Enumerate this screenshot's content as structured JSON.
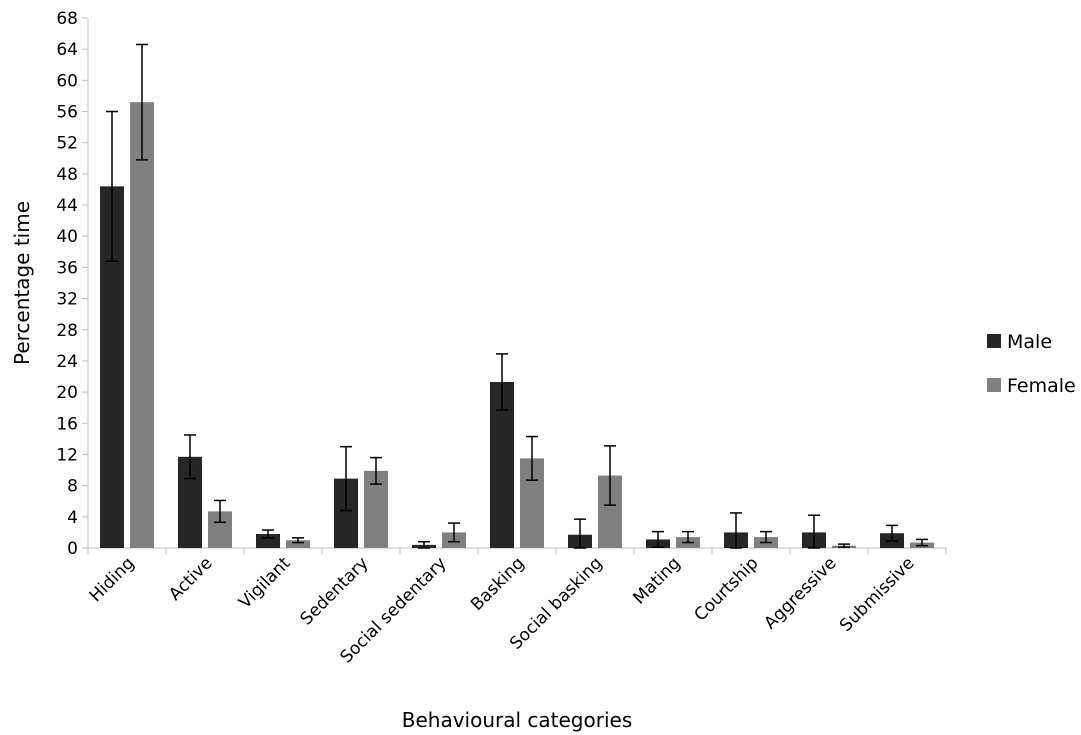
{
  "chart_data": {
    "type": "bar",
    "xlabel": "Behavioural categories",
    "ylabel": "Percentage time",
    "ylim": [
      0,
      68
    ],
    "yticks": [
      0,
      4,
      8,
      12,
      16,
      20,
      24,
      28,
      32,
      36,
      40,
      44,
      48,
      52,
      56,
      60,
      64,
      68
    ],
    "categories": [
      "Hiding",
      "Active",
      "Vigilant",
      "Sedentary",
      "Social sedentary",
      "Basking",
      "Social basking",
      "Mating",
      "Courtship",
      "Aggressive",
      "Submissive"
    ],
    "series": [
      {
        "name": "Male",
        "color": "#262626",
        "values": [
          46.4,
          11.7,
          1.8,
          8.9,
          0.4,
          21.3,
          1.7,
          1.1,
          2.0,
          2.0,
          1.9
        ],
        "error": [
          9.6,
          2.8,
          0.5,
          4.1,
          0.4,
          3.6,
          2.0,
          1.0,
          2.5,
          2.2,
          1.0
        ]
      },
      {
        "name": "Female",
        "color": "#808080",
        "values": [
          57.2,
          4.7,
          1.0,
          9.9,
          2.0,
          11.5,
          9.3,
          1.4,
          1.4,
          0.3,
          0.7
        ],
        "error": [
          7.4,
          1.4,
          0.3,
          1.7,
          1.2,
          2.8,
          3.8,
          0.7,
          0.7,
          0.2,
          0.4
        ]
      }
    ],
    "grid": false,
    "legend_position": "right"
  }
}
